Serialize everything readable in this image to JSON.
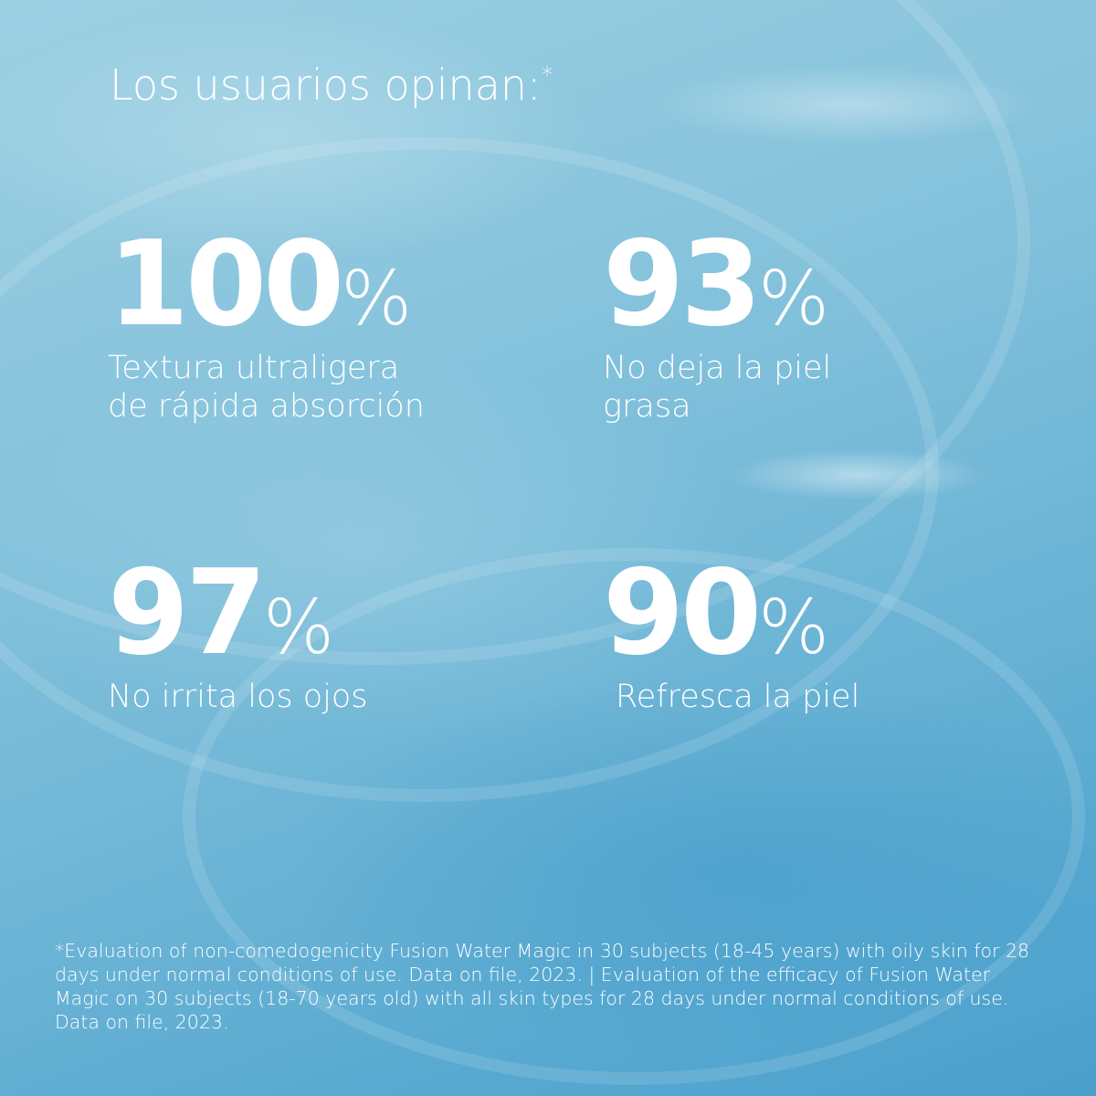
{
  "title": {
    "text": "Los usuarios opinan:",
    "marker": "*"
  },
  "stats": [
    {
      "value": "100",
      "unit": "%",
      "label_lines": [
        "Textura ultraligera",
        "de rápida absorción"
      ]
    },
    {
      "value": "93",
      "unit": "%",
      "label_lines": [
        "No deja la piel",
        "grasa"
      ]
    },
    {
      "value": "97",
      "unit": "%",
      "label_lines": [
        "No irrita los ojos"
      ]
    },
    {
      "value": "90",
      "unit": "%",
      "label_lines": [
        "Refresca la piel"
      ]
    }
  ],
  "footnote": "*Evaluation of non-comedogenicity Fusion Water Magic in 30 subjects (18-45 years) with oily skin for 28 days under normal conditions of use. Data on file, 2023. | Evaluation of the efficacy of Fusion Water Magic on 30 subjects (18-70 years old) with all skin types for 28 days under normal conditions of use. Data on file, 2023.",
  "colors": {
    "background": "#6fb6d6",
    "text": "#ffffff"
  }
}
